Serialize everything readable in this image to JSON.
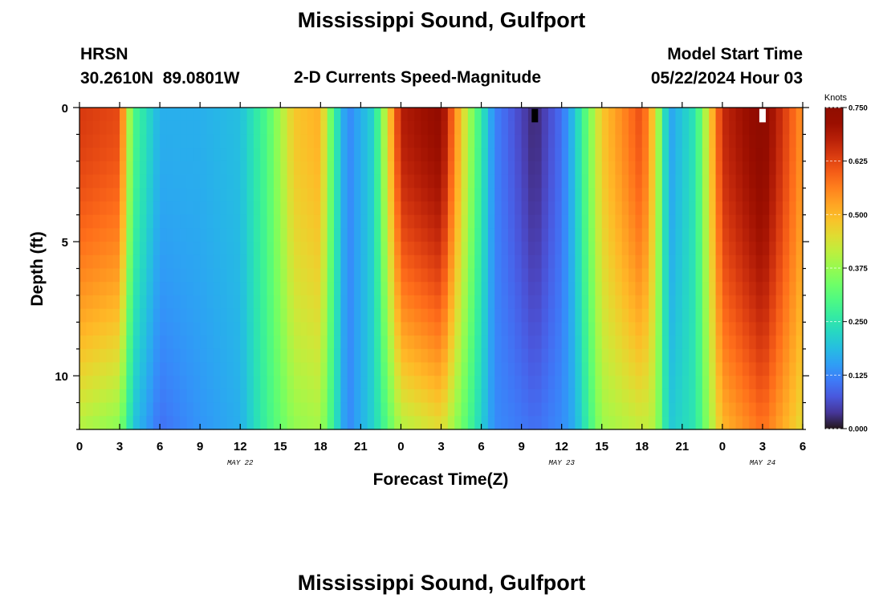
{
  "page": {
    "title": "Mississippi Sound, Gulfport",
    "station_id": "HRSN",
    "coordinates": "30.2610N  89.0801W",
    "subtitle": "2-D Currents Speed-Magnitude",
    "model_start_label": "Model Start Time",
    "model_start_value": "05/22/2024 Hour 03",
    "second_title": "Mississippi Sound, Gulfport"
  },
  "chart_data": {
    "type": "heatmap",
    "title": "Mississippi Sound, Gulfport",
    "subtitle": "2-D Currents Speed-Magnitude",
    "xlabel": "Forecast Time(Z)",
    "ylabel": "Depth (ft)",
    "colorbar_label": "Knots",
    "x_range_hours": [
      0,
      54
    ],
    "x_start": "2024-05-22 00Z",
    "x_end": "2024-05-24 06Z",
    "x_ticks": [
      "0",
      "3",
      "6",
      "9",
      "12",
      "15",
      "18",
      "21",
      "0",
      "3",
      "6",
      "9",
      "12",
      "15",
      "18",
      "21",
      "0",
      "3",
      "6"
    ],
    "date_labels": [
      {
        "text": "MAY 22",
        "hour": 12
      },
      {
        "text": "MAY 23",
        "hour": 36
      },
      {
        "text": "MAY 24",
        "hour": 51
      }
    ],
    "y_range_ft": [
      0,
      12
    ],
    "y_ticks": [
      "0",
      "5",
      "10"
    ],
    "y_inverted": true,
    "colorbar_range": [
      0,
      0.75
    ],
    "colorbar_ticks": [
      "0.000",
      "0.125",
      "0.250",
      "0.375",
      "0.500",
      "0.625",
      "0.750"
    ],
    "colormap": "turbo",
    "grid": false,
    "surface_speed_knots_by_hour": [
      {
        "hour": 0,
        "surface": 0.64,
        "bottom": 0.4
      },
      {
        "hour": 3,
        "surface": 0.62,
        "bottom": 0.36
      },
      {
        "hour": 4,
        "surface": 0.3,
        "bottom": 0.2
      },
      {
        "hour": 6,
        "surface": 0.17,
        "bottom": 0.1
      },
      {
        "hour": 9,
        "surface": 0.17,
        "bottom": 0.14
      },
      {
        "hour": 12,
        "surface": 0.19,
        "bottom": 0.17
      },
      {
        "hour": 14,
        "surface": 0.3,
        "bottom": 0.28
      },
      {
        "hour": 16,
        "surface": 0.48,
        "bottom": 0.37
      },
      {
        "hour": 18,
        "surface": 0.51,
        "bottom": 0.39
      },
      {
        "hour": 19,
        "surface": 0.28,
        "bottom": 0.26
      },
      {
        "hour": 20,
        "surface": 0.12,
        "bottom": 0.12
      },
      {
        "hour": 22,
        "surface": 0.22,
        "bottom": 0.22
      },
      {
        "hour": 24,
        "surface": 0.68,
        "bottom": 0.4
      },
      {
        "hour": 27,
        "surface": 0.73,
        "bottom": 0.45
      },
      {
        "hour": 29,
        "surface": 0.4,
        "bottom": 0.3
      },
      {
        "hour": 31,
        "surface": 0.12,
        "bottom": 0.13
      },
      {
        "hour": 34,
        "surface": 0.02,
        "bottom": 0.1
      },
      {
        "hour": 36,
        "surface": 0.1,
        "bottom": 0.13
      },
      {
        "hour": 37,
        "surface": 0.2,
        "bottom": 0.17
      },
      {
        "hour": 39,
        "surface": 0.48,
        "bottom": 0.38
      },
      {
        "hour": 42,
        "surface": 0.62,
        "bottom": 0.42
      },
      {
        "hour": 43,
        "surface": 0.45,
        "bottom": 0.4
      },
      {
        "hour": 44,
        "surface": 0.15,
        "bottom": 0.2
      },
      {
        "hour": 46,
        "surface": 0.25,
        "bottom": 0.25
      },
      {
        "hour": 48,
        "surface": 0.66,
        "bottom": 0.5
      },
      {
        "hour": 51,
        "surface": 0.75,
        "bottom": 0.58
      },
      {
        "hour": 54,
        "surface": 0.54,
        "bottom": 0.45
      }
    ],
    "markers": [
      {
        "hour": 34,
        "depth_top_ft": 0.05,
        "depth_bottom_ft": 0.55,
        "color": "#000000"
      },
      {
        "hour": 51,
        "depth_top_ft": 0.05,
        "depth_bottom_ft": 0.55,
        "color": "#ffffff"
      }
    ]
  }
}
